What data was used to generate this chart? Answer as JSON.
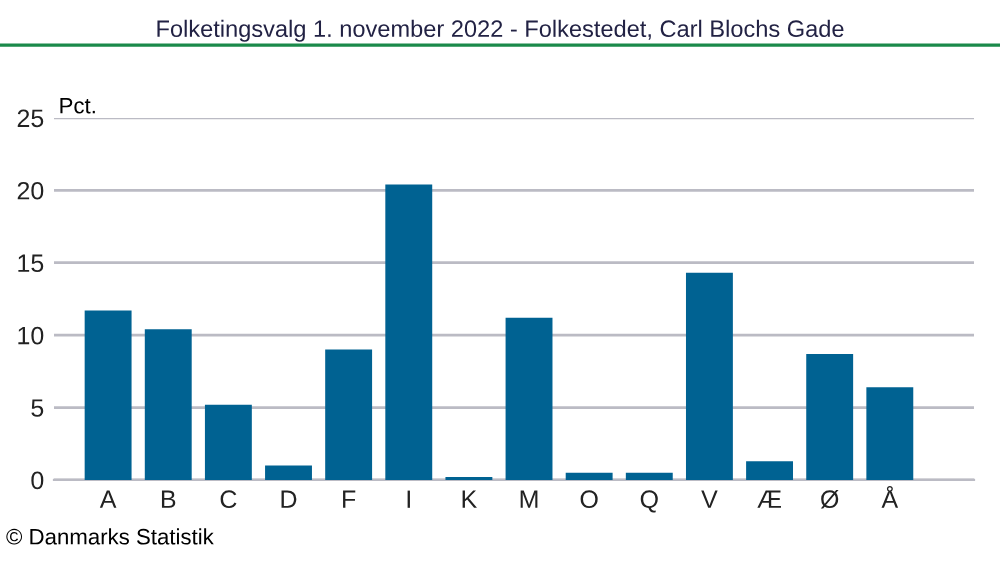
{
  "chart_data": {
    "type": "bar",
    "title": "Folketingsvalg 1. november 2022 - Folkestedet, Carl Blochs Gade",
    "ylabel": "Pct.",
    "categories": [
      "A",
      "B",
      "C",
      "D",
      "F",
      "I",
      "K",
      "M",
      "O",
      "Q",
      "V",
      "Æ",
      "Ø",
      "Å"
    ],
    "values": [
      11.7,
      10.4,
      5.2,
      1.0,
      9.0,
      20.4,
      0.2,
      11.2,
      0.5,
      0.5,
      14.3,
      1.3,
      8.7,
      6.4
    ],
    "color": "#006292",
    "ylim": [
      0,
      25
    ],
    "yticks": [
      0,
      5,
      10,
      15,
      20,
      25
    ],
    "grid": "y",
    "legend": false,
    "annotations": [
      "© Danmarks Statistik"
    ]
  }
}
